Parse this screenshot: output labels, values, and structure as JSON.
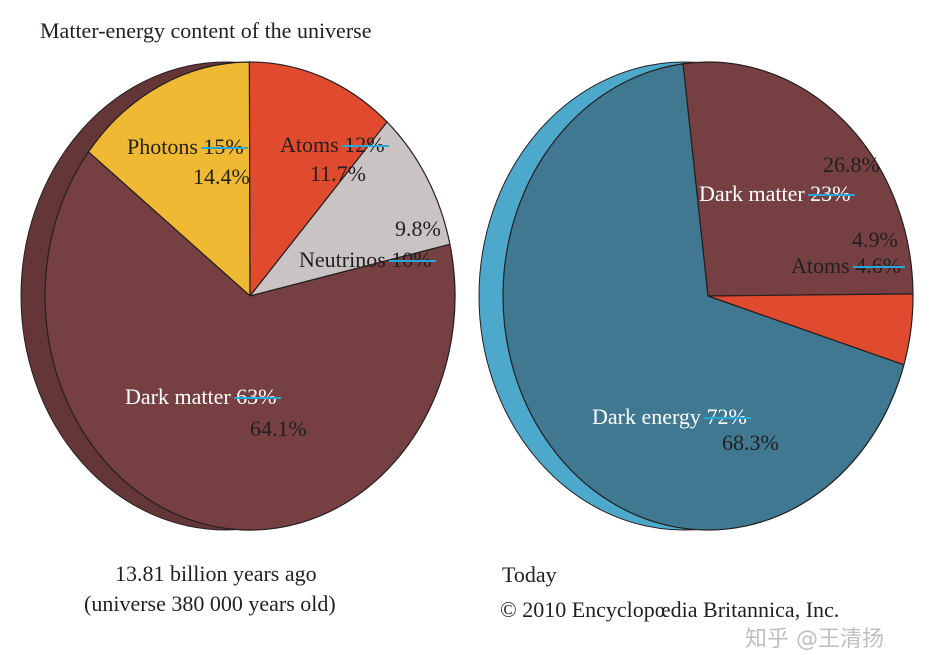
{
  "title": "Matter-energy content of the universe",
  "chart_data": [
    {
      "type": "pie",
      "caption_line1": "13.81 billion years ago",
      "caption_line2": "(universe 380 000 years old)",
      "slices": [
        {
          "label": "Photons",
          "old_value": "15%",
          "value": "14.4%",
          "v": 14.4,
          "color": "#efb934"
        },
        {
          "label": "Atoms",
          "old_value": "12%",
          "value": "11.7%",
          "v": 11.7,
          "color": "#e04a2f"
        },
        {
          "label": "Neutrinos",
          "old_value": "10%",
          "value": "9.8%",
          "v": 9.8,
          "color": "#c9c3c3"
        },
        {
          "label": "Dark matter",
          "old_value": "63%",
          "value": "64.1%",
          "v": 64.1,
          "color": "#764042"
        }
      ]
    },
    {
      "type": "pie",
      "caption_line1": "Today",
      "slices": [
        {
          "label": "Dark matter",
          "old_value": "23%",
          "value": "26.8%",
          "v": 26.8,
          "color": "#764042"
        },
        {
          "label": "Atoms",
          "old_value": "4.6%",
          "value": "4.9%",
          "v": 4.9,
          "color": "#e04a2f"
        },
        {
          "label": "Dark energy",
          "old_value": "72%",
          "value": "68.3%",
          "v": 68.3,
          "color": "#3f7890"
        }
      ]
    }
  ],
  "copyright": "© 2010 Encyclopœdia Britannica, Inc.",
  "watermark": "知乎 @王清扬"
}
